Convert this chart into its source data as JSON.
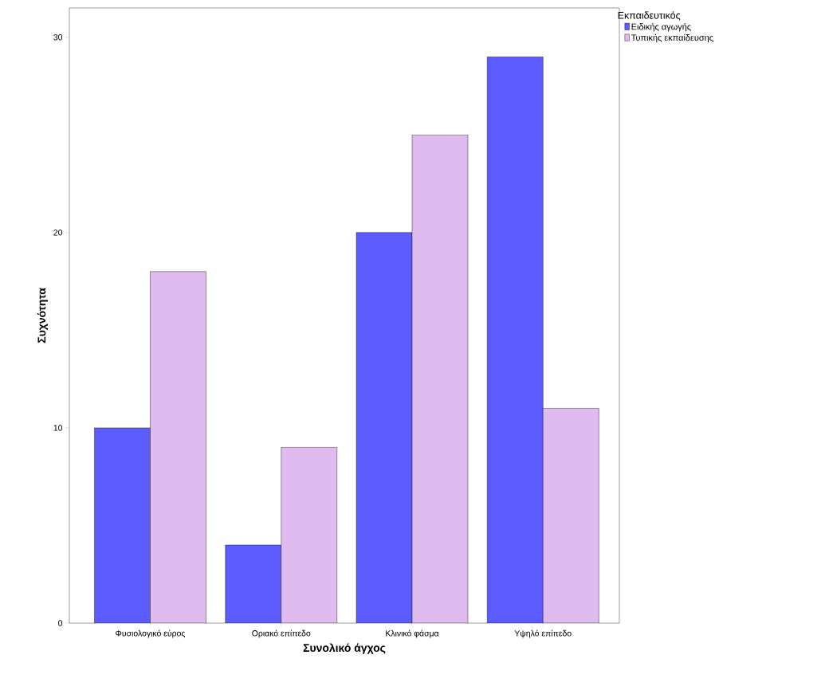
{
  "chart_data": {
    "type": "bar",
    "xlabel": "Συνολικό άγχος",
    "ylabel": "Συχνότητα",
    "legend_title": "Εκπαιδευτικός",
    "categories": [
      "Φυσιολογικό εύρος",
      "Οριακό επίπεδο",
      "Κλινικό φάσμα",
      "Υψηλό επίπεδο"
    ],
    "series": [
      {
        "name": "Ειδικής αγωγής",
        "color": "#5b5bff",
        "values": [
          10,
          4,
          20,
          29
        ]
      },
      {
        "name": "Τυπικής εκπαίδευσης",
        "color": "#dfbbf0",
        "values": [
          18,
          9,
          25,
          11
        ]
      }
    ],
    "ylim": [
      0,
      31.5
    ],
    "yticks": [
      0,
      10,
      20,
      30
    ],
    "grid": false,
    "legend": "right"
  }
}
